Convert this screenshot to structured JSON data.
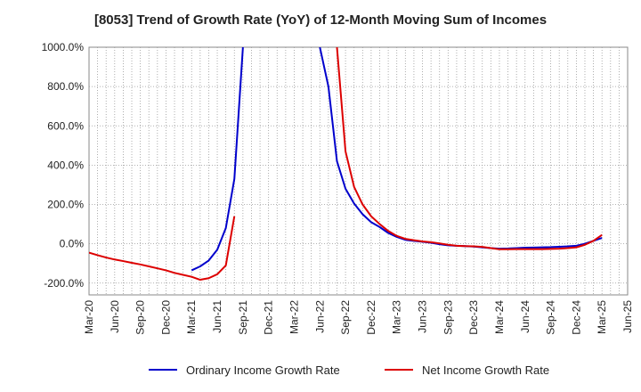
{
  "chart_data": {
    "type": "line",
    "title": "[8053]  Trend of Growth Rate (YoY) of 12-Month Moving Sum of Incomes",
    "xlabel": "",
    "ylabel": "",
    "x_ticks": [
      "Mar-20",
      "Jun-20",
      "Sep-20",
      "Dec-20",
      "Mar-21",
      "Jun-21",
      "Sep-21",
      "Dec-21",
      "Mar-22",
      "Jun-22",
      "Sep-22",
      "Dec-22",
      "Mar-23",
      "Jun-23",
      "Sep-23",
      "Dec-23",
      "Mar-24",
      "Jun-24",
      "Sep-24",
      "Dec-24",
      "Mar-25",
      "Jun-25"
    ],
    "y_ticks": [
      "1000.0%",
      "800.0%",
      "600.0%",
      "400.0%",
      "200.0%",
      "0.0%",
      "-200.0%"
    ],
    "ylim": [
      -260,
      1000
    ],
    "grid": true,
    "legend_position": "bottom",
    "series": [
      {
        "name": "Ordinary Income Growth Rate",
        "color": "#0000cc",
        "points": [
          [
            "Mar-21",
            -135
          ],
          [
            "Apr-21",
            -115
          ],
          [
            "May-21",
            -85
          ],
          [
            "Jun-21",
            -30
          ],
          [
            "Jul-21",
            80
          ],
          [
            "Aug-21",
            330
          ],
          [
            "Sep-21",
            1000
          ],
          [
            "Jun-22",
            1000
          ],
          [
            "Jul-22",
            800
          ],
          [
            "Aug-22",
            420
          ],
          [
            "Sep-22",
            280
          ],
          [
            "Oct-22",
            205
          ],
          [
            "Nov-22",
            150
          ],
          [
            "Dec-22",
            110
          ],
          [
            "Jan-23",
            85
          ],
          [
            "Feb-23",
            55
          ],
          [
            "Mar-23",
            35
          ],
          [
            "Apr-23",
            20
          ],
          [
            "May-23",
            15
          ],
          [
            "Jun-23",
            10
          ],
          [
            "Jul-23",
            5
          ],
          [
            "Aug-23",
            -2
          ],
          [
            "Sep-23",
            -8
          ],
          [
            "Oct-23",
            -10
          ],
          [
            "Nov-23",
            -12
          ],
          [
            "Dec-23",
            -14
          ],
          [
            "Jan-24",
            -18
          ],
          [
            "Feb-24",
            -22
          ],
          [
            "Mar-24",
            -25
          ],
          [
            "Apr-24",
            -24
          ],
          [
            "May-24",
            -22
          ],
          [
            "Jun-24",
            -20
          ],
          [
            "Jul-24",
            -19
          ],
          [
            "Aug-24",
            -18
          ],
          [
            "Sep-24",
            -17
          ],
          [
            "Oct-24",
            -15
          ],
          [
            "Nov-24",
            -13
          ],
          [
            "Dec-24",
            -10
          ],
          [
            "Jan-25",
            0
          ],
          [
            "Feb-25",
            15
          ],
          [
            "Mar-25",
            30
          ]
        ]
      },
      {
        "name": "Net Income Growth Rate",
        "color": "#dd0000",
        "points": [
          [
            "Mar-20",
            -45
          ],
          [
            "Apr-20",
            -58
          ],
          [
            "May-20",
            -70
          ],
          [
            "Jun-20",
            -80
          ],
          [
            "Jul-20",
            -88
          ],
          [
            "Aug-20",
            -97
          ],
          [
            "Sep-20",
            -105
          ],
          [
            "Oct-20",
            -115
          ],
          [
            "Nov-20",
            -125
          ],
          [
            "Dec-20",
            -135
          ],
          [
            "Jan-21",
            -148
          ],
          [
            "Feb-21",
            -158
          ],
          [
            "Mar-21",
            -168
          ],
          [
            "Apr-21",
            -183
          ],
          [
            "May-21",
            -175
          ],
          [
            "Jun-21",
            -155
          ],
          [
            "Jul-21",
            -110
          ],
          [
            "Aug-21",
            140
          ],
          [
            "Aug-22",
            1000
          ],
          [
            "Sep-22",
            470
          ],
          [
            "Oct-22",
            290
          ],
          [
            "Nov-22",
            200
          ],
          [
            "Dec-22",
            140
          ],
          [
            "Jan-23",
            100
          ],
          [
            "Feb-23",
            65
          ],
          [
            "Mar-23",
            40
          ],
          [
            "Apr-23",
            25
          ],
          [
            "May-23",
            18
          ],
          [
            "Jun-23",
            12
          ],
          [
            "Jul-23",
            8
          ],
          [
            "Aug-23",
            2
          ],
          [
            "Sep-23",
            -5
          ],
          [
            "Oct-23",
            -10
          ],
          [
            "Nov-23",
            -12
          ],
          [
            "Dec-23",
            -13
          ],
          [
            "Jan-24",
            -16
          ],
          [
            "Feb-24",
            -22
          ],
          [
            "Mar-24",
            -28
          ],
          [
            "Apr-24",
            -28
          ],
          [
            "May-24",
            -27
          ],
          [
            "Jun-24",
            -27
          ],
          [
            "Jul-24",
            -27
          ],
          [
            "Aug-24",
            -27
          ],
          [
            "Sep-24",
            -26
          ],
          [
            "Oct-24",
            -25
          ],
          [
            "Nov-24",
            -22
          ],
          [
            "Dec-24",
            -18
          ],
          [
            "Jan-25",
            -5
          ],
          [
            "Feb-25",
            15
          ],
          [
            "Mar-25",
            45
          ]
        ]
      }
    ]
  }
}
